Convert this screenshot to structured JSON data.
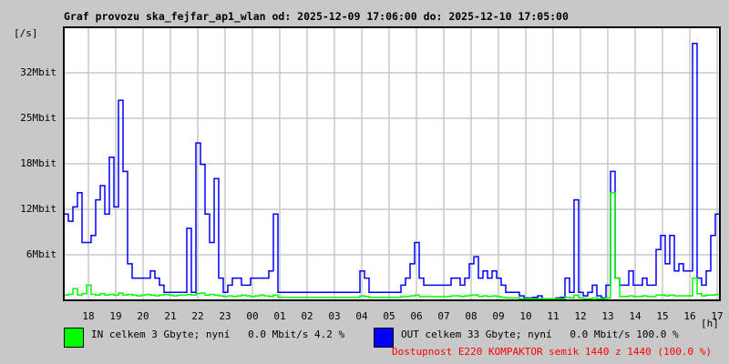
{
  "chart_data": {
    "type": "line",
    "title": "Graf provozu ska_fejfar_ap1_wlan od: 2025-12-09 17:06:00 do: 2025-12-10 17:05:00",
    "ylabel": "[/s]",
    "xlabel": "[h]",
    "x_start": "2025-12-09 17:06",
    "interval_min": 10,
    "y_ticks": [
      "6Mbit",
      "12Mbit",
      "18Mbit",
      "25Mbit",
      "32Mbit"
    ],
    "ylim_mbit": [
      0,
      38.4
    ],
    "x_ticks": [
      "18",
      "19",
      "20",
      "21",
      "22",
      "23",
      "00",
      "01",
      "02",
      "03",
      "04",
      "05",
      "06",
      "07",
      "08",
      "09",
      "10",
      "11",
      "12",
      "13",
      "14",
      "15",
      "16",
      "17"
    ],
    "grid": true,
    "series": [
      {
        "name": "IN",
        "color": "#00ff00",
        "values": [
          0.6,
          0.7,
          1.5,
          0.6,
          0.8,
          2,
          0.7,
          0.6,
          0.8,
          0.6,
          0.7,
          0.6,
          0.9,
          0.6,
          0.7,
          0.6,
          0.5,
          0.6,
          0.7,
          0.6,
          0.5,
          0.6,
          0.7,
          0.6,
          0.5,
          0.6,
          0.6,
          0.7,
          0.6,
          0.8,
          0.9,
          0.6,
          0.7,
          0.6,
          0.5,
          0.4,
          0.5,
          0.4,
          0.5,
          0.6,
          0.5,
          0.4,
          0.5,
          0.6,
          0.5,
          0.4,
          0.6,
          0.3,
          0.3,
          0.3,
          0.3,
          0.3,
          0.3,
          0.3,
          0.3,
          0.3,
          0.3,
          0.3,
          0.3,
          0.3,
          0.3,
          0.3,
          0.3,
          0.3,
          0.3,
          0.5,
          0.4,
          0.3,
          0.3,
          0.3,
          0.3,
          0.3,
          0.3,
          0.3,
          0.4,
          0.4,
          0.5,
          0.6,
          0.4,
          0.4,
          0.4,
          0.4,
          0.4,
          0.4,
          0.4,
          0.5,
          0.5,
          0.4,
          0.5,
          0.6,
          0.6,
          0.4,
          0.5,
          0.4,
          0.5,
          0.4,
          0.3,
          0.2,
          0.2,
          0.2,
          0.1,
          0.1,
          0.1,
          0.1,
          0.1,
          0.1,
          0.1,
          0.1,
          0.1,
          0.1,
          0.3,
          0.2,
          0.6,
          0.2,
          0.1,
          0.1,
          0.2,
          0.1,
          0.1,
          0.2,
          15,
          3,
          0.4,
          0.4,
          0.5,
          0.4,
          0.4,
          0.5,
          0.4,
          0.4,
          0.6,
          0.6,
          0.5,
          0.6,
          0.5,
          0.5,
          0.5,
          0.5,
          3,
          0.8,
          0.5,
          0.6,
          0.6,
          0.7
        ]
      },
      {
        "name": "OUT",
        "color": "#0000ff",
        "values": [
          12,
          11,
          13,
          15,
          8,
          8,
          9,
          14,
          16,
          12,
          20,
          13,
          28,
          18,
          5,
          3,
          3,
          3,
          3,
          4,
          3,
          2,
          1,
          1,
          1,
          1,
          1,
          10,
          1,
          22,
          19,
          12,
          8,
          17,
          3,
          1,
          2,
          3,
          3,
          2,
          2,
          3,
          3,
          3,
          3,
          4,
          12,
          1,
          1,
          1,
          1,
          1,
          1,
          1,
          1,
          1,
          1,
          1,
          1,
          1,
          1,
          1,
          1,
          1,
          1,
          4,
          3,
          1,
          1,
          1,
          1,
          1,
          1,
          1,
          2,
          3,
          5,
          8,
          3,
          2,
          2,
          2,
          2,
          2,
          2,
          3,
          3,
          2,
          3,
          5,
          6,
          3,
          4,
          3,
          4,
          3,
          2,
          1,
          1,
          1,
          0.5,
          0.2,
          0.2,
          0.3,
          0.5,
          0.1,
          0.1,
          0.1,
          0.2,
          0.3,
          3,
          1,
          14,
          1,
          0.5,
          1,
          2,
          0.5,
          0.2,
          2,
          18,
          3,
          2,
          2,
          4,
          2,
          2,
          3,
          2,
          2,
          7,
          9,
          5,
          9,
          4,
          5,
          4,
          4,
          36,
          3,
          2,
          4,
          9,
          12
        ]
      }
    ]
  },
  "legend": {
    "in": {
      "text": "IN celkem 3 Gbyte; nyní   0.0 Mbit/s 4.2 %",
      "color": "#00ff00"
    },
    "out": {
      "text": "OUT celkem 33 Gbyte; nyní   0.0 Mbit/s 100.0 %",
      "color": "#0000ff"
    },
    "availability": "Dostupnost E220 KOMPAKTOR semik 1440 z 1440 (100.0 %)"
  }
}
